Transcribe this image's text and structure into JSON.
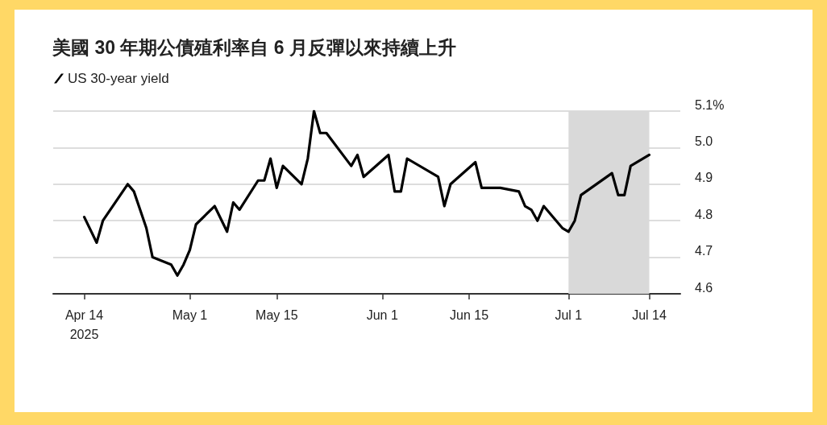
{
  "chart_data": {
    "type": "line",
    "title": "美國 30 年期公債殖利率自 6 月反彈以來持續上升",
    "x": [
      "2025-04-14",
      "2025-04-16",
      "2025-04-17",
      "2025-04-21",
      "2025-04-22",
      "2025-04-24",
      "2025-04-25",
      "2025-04-28",
      "2025-04-29",
      "2025-04-30",
      "2025-05-01",
      "2025-05-02",
      "2025-05-05",
      "2025-05-07",
      "2025-05-08",
      "2025-05-09",
      "2025-05-12",
      "2025-05-13",
      "2025-05-14",
      "2025-05-15",
      "2025-05-16",
      "2025-05-19",
      "2025-05-20",
      "2025-05-21",
      "2025-05-22",
      "2025-05-23",
      "2025-05-27",
      "2025-05-28",
      "2025-05-29",
      "2025-06-02",
      "2025-06-03",
      "2025-06-04",
      "2025-06-05",
      "2025-06-10",
      "2025-06-11",
      "2025-06-12",
      "2025-06-16",
      "2025-06-17",
      "2025-06-20",
      "2025-06-23",
      "2025-06-24",
      "2025-06-25",
      "2025-06-26",
      "2025-06-27",
      "2025-06-30",
      "2025-07-01",
      "2025-07-02",
      "2025-07-03",
      "2025-07-08",
      "2025-07-09",
      "2025-07-10",
      "2025-07-11",
      "2025-07-14"
    ],
    "series": [
      {
        "name": "US 30-year yield",
        "color": "#000000",
        "values": [
          4.81,
          4.74,
          4.8,
          4.9,
          4.88,
          4.78,
          4.7,
          4.68,
          4.65,
          4.68,
          4.72,
          4.79,
          4.84,
          4.77,
          4.85,
          4.83,
          4.91,
          4.91,
          4.97,
          4.89,
          4.95,
          4.9,
          4.97,
          5.1,
          5.04,
          5.04,
          4.95,
          4.98,
          4.92,
          4.98,
          4.88,
          4.88,
          4.97,
          4.92,
          4.84,
          4.9,
          4.96,
          4.89,
          4.89,
          4.88,
          4.84,
          4.83,
          4.8,
          4.84,
          4.78,
          4.77,
          4.8,
          4.87,
          4.93,
          4.87,
          4.87,
          4.95,
          4.98
        ]
      }
    ],
    "xlim": [
      "2025-04-09",
      "2025-07-19"
    ],
    "xticks": [
      {
        "value": "2025-04-14",
        "label": "Apr 14\n2025"
      },
      {
        "value": "2025-05-01",
        "label": "May 1"
      },
      {
        "value": "2025-05-15",
        "label": "May 15"
      },
      {
        "value": "2025-06-01",
        "label": "Jun 1"
      },
      {
        "value": "2025-06-15",
        "label": "Jun 15"
      },
      {
        "value": "2025-07-01",
        "label": "Jul 1"
      },
      {
        "value": "2025-07-14",
        "label": "Jul 14"
      }
    ],
    "ylim": [
      4.6,
      5.1
    ],
    "yticks": [
      4.6,
      4.7,
      4.8,
      4.9,
      {
        "value": 5.0,
        "label": "5.0"
      },
      {
        "value": 5.1,
        "label": "5.1%"
      }
    ],
    "bands": [
      {
        "axis": "x",
        "from": "2025-07-01",
        "to": "2025-07-14",
        "color": "#d9d9d9"
      }
    ],
    "grid": "y",
    "legend": "top left",
    "marker": "none",
    "line_style": "solid"
  }
}
